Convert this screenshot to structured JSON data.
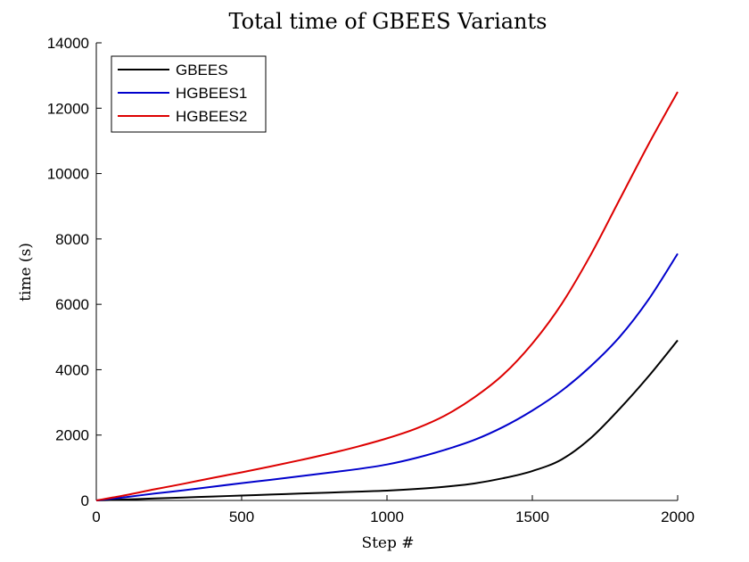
{
  "chart_data": {
    "type": "line",
    "title": "Total time of GBEES Variants",
    "xlabel": "Step #",
    "ylabel": "time (s)",
    "xlim": [
      0,
      2000
    ],
    "ylim": [
      0,
      14000
    ],
    "xticks": [
      0,
      500,
      1000,
      1500,
      2000
    ],
    "yticks": [
      0,
      2000,
      4000,
      6000,
      8000,
      10000,
      12000,
      14000
    ],
    "grid": false,
    "legend_position": "top-left",
    "x": [
      0,
      100,
      200,
      300,
      400,
      500,
      600,
      700,
      800,
      900,
      1000,
      1100,
      1200,
      1300,
      1400,
      1500,
      1600,
      1700,
      1800,
      1900,
      2000
    ],
    "series": [
      {
        "name": "GBEES",
        "color": "#000000",
        "values": [
          0,
          30,
          60,
          90,
          120,
          150,
          180,
          210,
          240,
          270,
          300,
          350,
          420,
          520,
          680,
          900,
          1250,
          1900,
          2800,
          3800,
          4900
        ]
      },
      {
        "name": "HGBEES1",
        "color": "#0000cc",
        "values": [
          0,
          100,
          210,
          310,
          420,
          530,
          630,
          740,
          850,
          960,
          1100,
          1300,
          1550,
          1850,
          2250,
          2750,
          3350,
          4100,
          5000,
          6150,
          7550
        ]
      },
      {
        "name": "HGBEES2",
        "color": "#dd0000",
        "values": [
          0,
          160,
          340,
          510,
          690,
          860,
          1040,
          1230,
          1430,
          1650,
          1900,
          2200,
          2600,
          3150,
          3850,
          4800,
          6000,
          7500,
          9200,
          10900,
          12500
        ]
      }
    ]
  }
}
